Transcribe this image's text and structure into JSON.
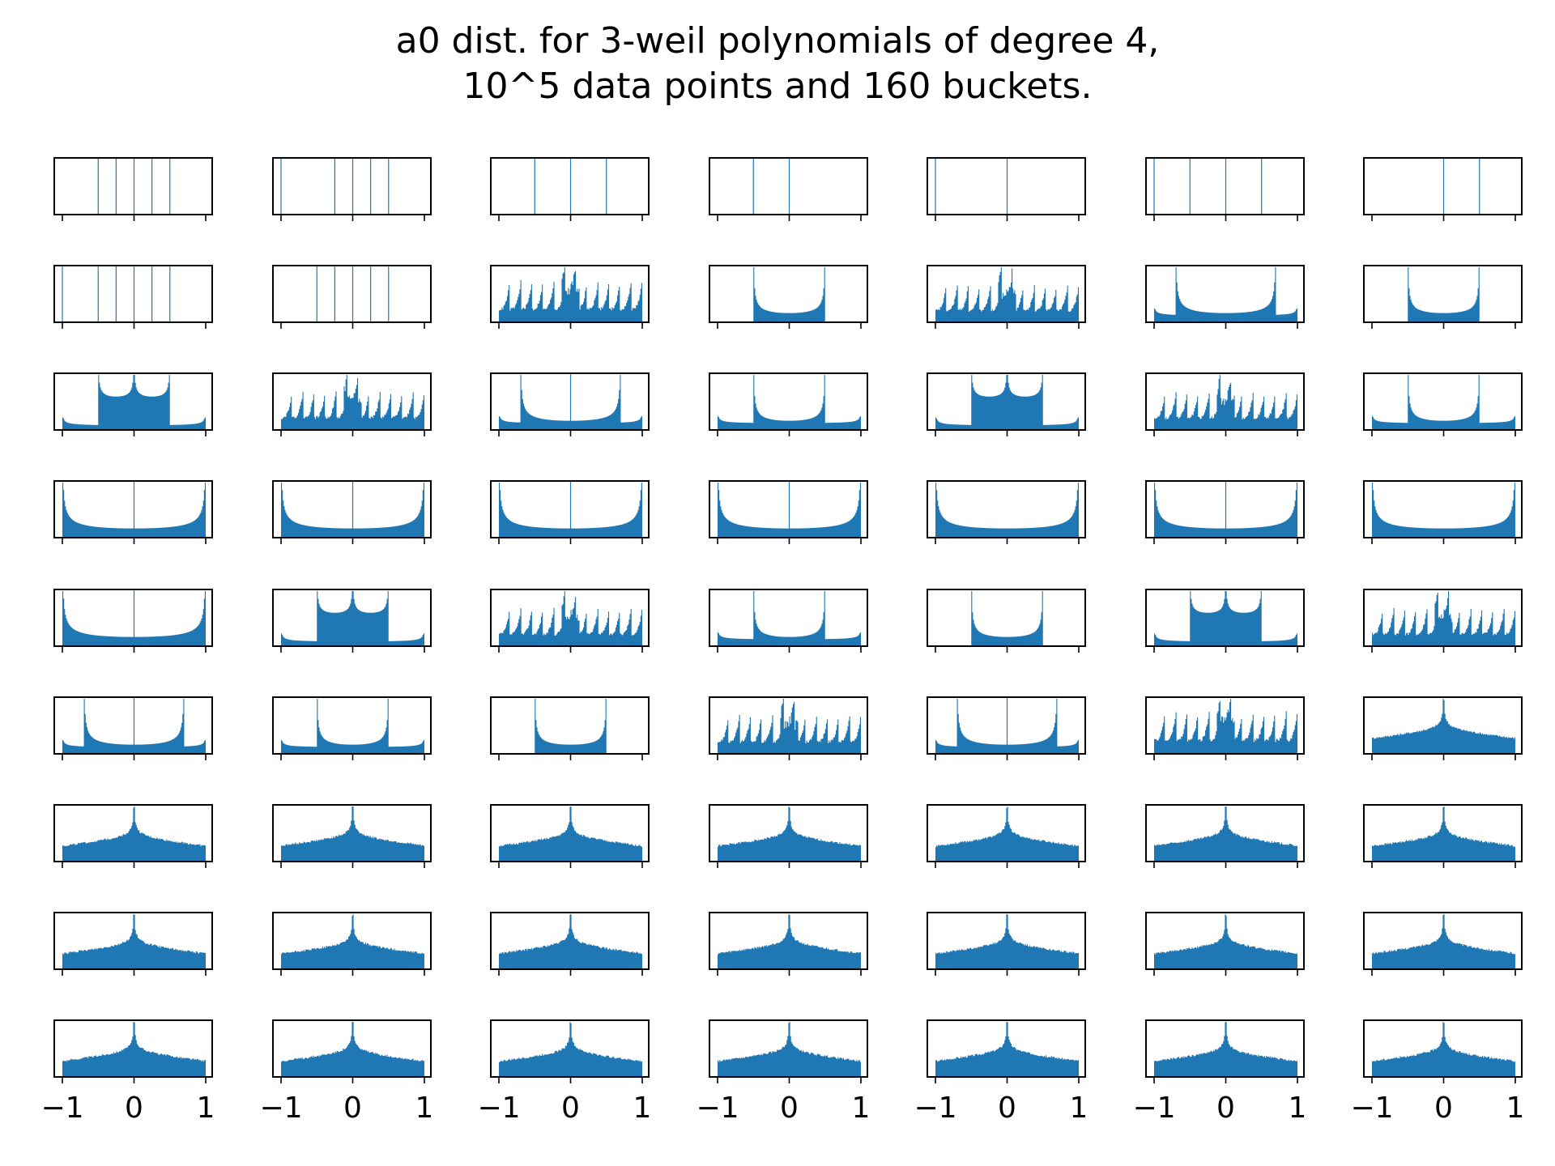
{
  "chart_data": {
    "type": "histogram-grid",
    "title_lines": [
      "a0 dist. for 3-weil polynomials of degree 4,",
      "10^5 data points and 160 buckets."
    ],
    "rows": 9,
    "cols": 7,
    "xlim": [
      -1,
      1
    ],
    "xticks": [
      -1,
      0,
      1
    ],
    "xtick_labels": [
      "−1",
      "0",
      "1"
    ],
    "xtick_labels_shown_on": "bottom row only",
    "yticks": "none",
    "bucket_count": 160,
    "bar_color": "#1f77b4",
    "panels": [
      {
        "kind": "lines",
        "positions": [
          -0.5,
          -0.25,
          0,
          0.25,
          0.5
        ]
      },
      {
        "kind": "lines",
        "positions": [
          -1,
          -0.25,
          0,
          0.25,
          0.5
        ]
      },
      {
        "kind": "lines",
        "positions": [
          -0.5,
          0,
          0.5
        ]
      },
      {
        "kind": "lines",
        "positions": [
          -0.5,
          0
        ]
      },
      {
        "kind": "lines",
        "positions": [
          -1,
          0
        ]
      },
      {
        "kind": "lines",
        "positions": [
          -1,
          -0.5,
          0,
          0.5
        ]
      },
      {
        "kind": "lines",
        "positions": [
          0,
          0.5
        ]
      },
      {
        "kind": "lines",
        "positions": [
          -1,
          -0.5,
          -0.25,
          0,
          0.25,
          0.5
        ]
      },
      {
        "kind": "lines",
        "positions": [
          -0.5,
          -0.25,
          0,
          0.25,
          0.5
        ]
      },
      {
        "kind": "comb"
      },
      {
        "kind": "u",
        "a": 0.5
      },
      {
        "kind": "comb"
      },
      {
        "kind": "u2",
        "inner": 0.7,
        "outer": 1
      },
      {
        "kind": "u",
        "a": 0.5
      },
      {
        "kind": "bimodal",
        "inner": 0.5,
        "outer": 1
      },
      {
        "kind": "comb"
      },
      {
        "kind": "u2",
        "inner": 0.7,
        "outer": 1,
        "spike": 0
      },
      {
        "kind": "u2",
        "inner": 0.5,
        "outer": 1
      },
      {
        "kind": "bimodal",
        "inner": 0.5,
        "outer": 1
      },
      {
        "kind": "comb"
      },
      {
        "kind": "u2",
        "inner": 0.5,
        "outer": 1
      },
      {
        "kind": "u",
        "a": 1,
        "spike": 0
      },
      {
        "kind": "u",
        "a": 1,
        "spike": 0
      },
      {
        "kind": "u",
        "a": 1,
        "spike": 0
      },
      {
        "kind": "u",
        "a": 1,
        "spike": 0
      },
      {
        "kind": "u",
        "a": 1
      },
      {
        "kind": "u",
        "a": 1,
        "spike": 0
      },
      {
        "kind": "u",
        "a": 1
      },
      {
        "kind": "u",
        "a": 1,
        "spike": 0
      },
      {
        "kind": "bimodal",
        "inner": 0.5,
        "outer": 1
      },
      {
        "kind": "comb"
      },
      {
        "kind": "u2",
        "inner": 0.5,
        "outer": 1
      },
      {
        "kind": "u",
        "a": 0.5
      },
      {
        "kind": "bimodal",
        "inner": 0.5,
        "outer": 1
      },
      {
        "kind": "comb"
      },
      {
        "kind": "u2",
        "inner": 0.7,
        "outer": 1,
        "spike": 0
      },
      {
        "kind": "u2",
        "inner": 0.5,
        "outer": 1
      },
      {
        "kind": "u",
        "a": 0.5
      },
      {
        "kind": "comb"
      },
      {
        "kind": "u2",
        "inner": 0.7,
        "outer": 1,
        "spike": 0
      },
      {
        "kind": "comb"
      },
      {
        "kind": "peak"
      },
      {
        "kind": "peak"
      },
      {
        "kind": "peak"
      },
      {
        "kind": "peak"
      },
      {
        "kind": "peak"
      },
      {
        "kind": "peak"
      },
      {
        "kind": "peak"
      },
      {
        "kind": "peak"
      },
      {
        "kind": "peak"
      },
      {
        "kind": "peak"
      },
      {
        "kind": "peak"
      },
      {
        "kind": "peak"
      },
      {
        "kind": "peak"
      },
      {
        "kind": "peak"
      },
      {
        "kind": "peak"
      },
      {
        "kind": "peak"
      },
      {
        "kind": "peak"
      },
      {
        "kind": "peak"
      },
      {
        "kind": "peak"
      },
      {
        "kind": "peak"
      },
      {
        "kind": "peak"
      },
      {
        "kind": "peak"
      }
    ]
  }
}
